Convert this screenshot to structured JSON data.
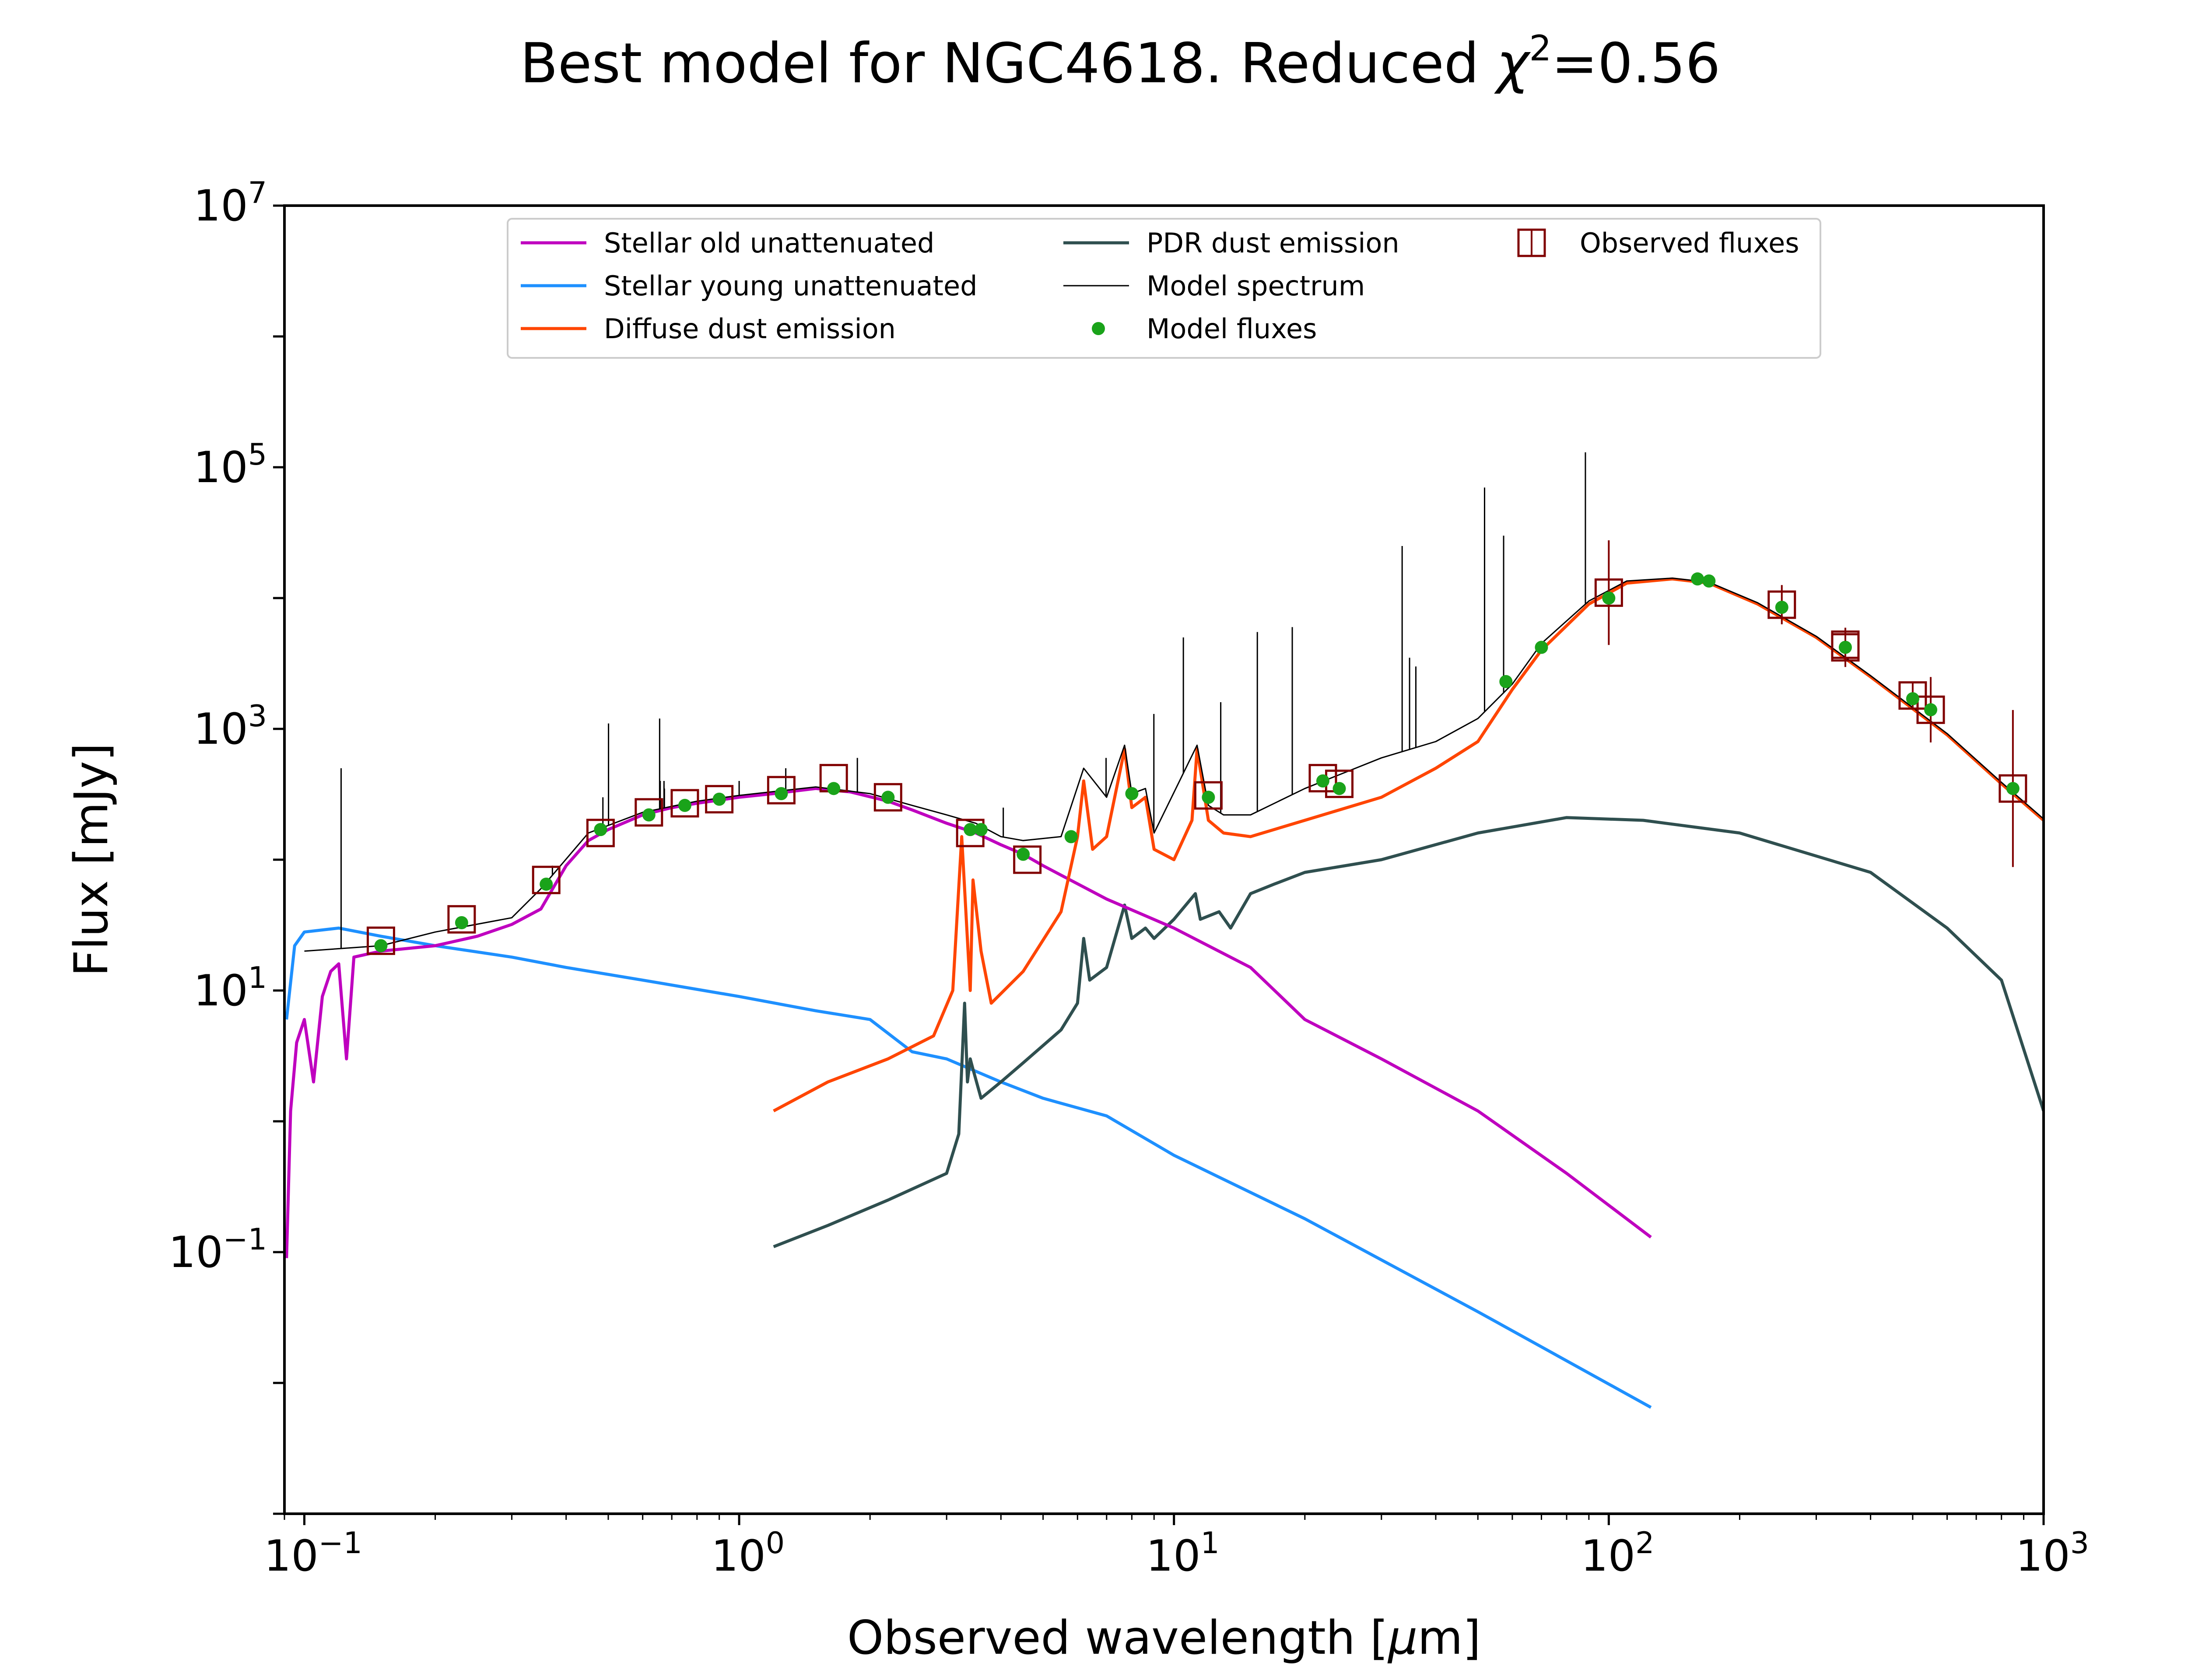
{
  "chart_data": {
    "type": "line",
    "title": "Best model for NGC4618. Reduced χ²=0.56",
    "title_parts": {
      "main": "Best model for NGC4618. Reduced ",
      "chi": "χ",
      "sup": "2",
      "eq": "=0.56"
    },
    "xlabel": "Observed wavelength [μm]",
    "xlabel_parts": {
      "pre": "Observed wavelength [",
      "mu": "μ",
      "post": "m]"
    },
    "ylabel": "Flux [mJy]",
    "xscale": "log",
    "yscale": "log",
    "xlim": [
      0.09,
      1000
    ],
    "ylim": [
      0.001,
      10000000
    ],
    "x_ticks": [
      {
        "value": 0.1,
        "base": "10",
        "exp": "−1"
      },
      {
        "value": 1,
        "base": "10",
        "exp": "0"
      },
      {
        "value": 10,
        "base": "10",
        "exp": "1"
      },
      {
        "value": 100,
        "base": "10",
        "exp": "2"
      },
      {
        "value": 1000,
        "base": "10",
        "exp": "3"
      }
    ],
    "y_ticks": [
      {
        "value": 0.1,
        "base": "10",
        "exp": "−1"
      },
      {
        "value": 10,
        "base": "10",
        "exp": "1"
      },
      {
        "value": 1000,
        "base": "10",
        "exp": "3"
      },
      {
        "value": 100000,
        "base": "10",
        "exp": "5"
      },
      {
        "value": 10000000,
        "base": "10",
        "exp": "7"
      }
    ],
    "legend_position": "upper center",
    "grid": false,
    "series": [
      {
        "name": "Stellar old unattenuated",
        "color": "#BF00BF",
        "width": 7,
        "points": [
          [
            0.091,
            0.09
          ],
          [
            0.093,
            1.2
          ],
          [
            0.096,
            4
          ],
          [
            0.1,
            6
          ],
          [
            0.105,
            2
          ],
          [
            0.11,
            9
          ],
          [
            0.115,
            14
          ],
          [
            0.12,
            16
          ],
          [
            0.125,
            3
          ],
          [
            0.13,
            18
          ],
          [
            0.15,
            20
          ],
          [
            0.2,
            22
          ],
          [
            0.25,
            26
          ],
          [
            0.3,
            32
          ],
          [
            0.35,
            42
          ],
          [
            0.4,
            90
          ],
          [
            0.45,
            140
          ],
          [
            0.5,
            170
          ],
          [
            0.6,
            220
          ],
          [
            0.7,
            250
          ],
          [
            0.8,
            270
          ],
          [
            1.0,
            300
          ],
          [
            1.2,
            320
          ],
          [
            1.5,
            350
          ],
          [
            1.8,
            330
          ],
          [
            2.2,
            280
          ],
          [
            2.5,
            240
          ],
          [
            3.0,
            190
          ],
          [
            3.5,
            160
          ],
          [
            4.0,
            130
          ],
          [
            4.5,
            110
          ],
          [
            5.0,
            90
          ],
          [
            7.0,
            50
          ],
          [
            10,
            30
          ],
          [
            15,
            15
          ],
          [
            20,
            6
          ],
          [
            30,
            3
          ],
          [
            50,
            1.2
          ],
          [
            80,
            0.4
          ],
          [
            125,
            0.13
          ]
        ]
      },
      {
        "name": "Stellar young unattenuated",
        "color": "#1E90FF",
        "width": 7,
        "points": [
          [
            0.091,
            6
          ],
          [
            0.095,
            22
          ],
          [
            0.1,
            28
          ],
          [
            0.12,
            30
          ],
          [
            0.15,
            26
          ],
          [
            0.2,
            22
          ],
          [
            0.3,
            18
          ],
          [
            0.4,
            15
          ],
          [
            0.6,
            12
          ],
          [
            1.0,
            9
          ],
          [
            1.5,
            7
          ],
          [
            2.0,
            6
          ],
          [
            2.3,
            4.2
          ],
          [
            2.5,
            3.4
          ],
          [
            3.0,
            3.0
          ],
          [
            4.0,
            2.0
          ],
          [
            5.0,
            1.5
          ],
          [
            7.0,
            1.1
          ],
          [
            10,
            0.55
          ],
          [
            20,
            0.18
          ],
          [
            50,
            0.035
          ],
          [
            125,
            0.0065
          ]
        ]
      },
      {
        "name": "Diffuse dust emission",
        "color": "#FF4500",
        "width": 7,
        "points": [
          [
            1.2,
            1.2
          ],
          [
            1.6,
            2.0
          ],
          [
            2.2,
            3.0
          ],
          [
            2.8,
            4.5
          ],
          [
            3.1,
            10
          ],
          [
            3.25,
            150
          ],
          [
            3.4,
            10
          ],
          [
            3.45,
            70
          ],
          [
            3.6,
            20
          ],
          [
            3.8,
            8
          ],
          [
            4.5,
            14
          ],
          [
            5.5,
            40
          ],
          [
            6.0,
            150
          ],
          [
            6.2,
            400
          ],
          [
            6.5,
            120
          ],
          [
            7.0,
            150
          ],
          [
            7.7,
            700
          ],
          [
            8.0,
            250
          ],
          [
            8.6,
            300
          ],
          [
            9.0,
            120
          ],
          [
            10,
            100
          ],
          [
            11.0,
            200
          ],
          [
            11.3,
            700
          ],
          [
            12,
            200
          ],
          [
            13,
            160
          ],
          [
            15,
            150
          ],
          [
            20,
            200
          ],
          [
            30,
            300
          ],
          [
            40,
            500
          ],
          [
            50,
            800
          ],
          [
            60,
            2000
          ],
          [
            70,
            4000
          ],
          [
            90,
            9000
          ],
          [
            110,
            13000
          ],
          [
            140,
            14000
          ],
          [
            170,
            13000
          ],
          [
            220,
            9000
          ],
          [
            300,
            5000
          ],
          [
            400,
            2500
          ],
          [
            600,
            900
          ],
          [
            800,
            380
          ],
          [
            1000,
            200
          ]
        ]
      },
      {
        "name": "PDR dust emission",
        "color": "#2F4F4F",
        "width": 7,
        "points": [
          [
            1.2,
            0.11
          ],
          [
            1.6,
            0.16
          ],
          [
            2.2,
            0.25
          ],
          [
            3.0,
            0.4
          ],
          [
            3.2,
            0.8
          ],
          [
            3.3,
            8
          ],
          [
            3.35,
            2
          ],
          [
            3.4,
            3
          ],
          [
            3.45,
            2.5
          ],
          [
            3.6,
            1.5
          ],
          [
            4.0,
            2.0
          ],
          [
            4.5,
            2.8
          ],
          [
            5.5,
            5
          ],
          [
            6.0,
            8
          ],
          [
            6.2,
            25
          ],
          [
            6.4,
            12
          ],
          [
            7.0,
            15
          ],
          [
            7.7,
            45
          ],
          [
            8.0,
            25
          ],
          [
            8.6,
            30
          ],
          [
            9.0,
            25
          ],
          [
            10,
            35
          ],
          [
            11.2,
            55
          ],
          [
            11.5,
            35
          ],
          [
            12.7,
            40
          ],
          [
            13.5,
            30
          ],
          [
            15,
            55
          ],
          [
            17,
            65
          ],
          [
            20,
            80
          ],
          [
            30,
            100
          ],
          [
            50,
            160
          ],
          [
            80,
            210
          ],
          [
            120,
            200
          ],
          [
            200,
            160
          ],
          [
            400,
            80
          ],
          [
            600,
            30
          ],
          [
            800,
            12
          ],
          [
            1000,
            1.2
          ]
        ]
      },
      {
        "name": "Model spectrum",
        "color": "#000000",
        "width": 3,
        "points": [
          [
            0.1,
            20
          ],
          [
            0.15,
            22
          ],
          [
            0.2,
            28
          ],
          [
            0.3,
            36
          ],
          [
            0.35,
            60
          ],
          [
            0.45,
            160
          ],
          [
            0.6,
            230
          ],
          [
            0.8,
            280
          ],
          [
            1.0,
            310
          ],
          [
            1.5,
            360
          ],
          [
            2.0,
            320
          ],
          [
            2.5,
            260
          ],
          [
            3.0,
            220
          ],
          [
            3.5,
            190
          ],
          [
            4.0,
            150
          ],
          [
            4.5,
            140
          ],
          [
            5.5,
            150
          ],
          [
            6.2,
            500
          ],
          [
            7.0,
            300
          ],
          [
            7.7,
            750
          ],
          [
            8.0,
            320
          ],
          [
            8.6,
            350
          ],
          [
            9.0,
            160
          ],
          [
            11.3,
            750
          ],
          [
            12,
            260
          ],
          [
            13,
            220
          ],
          [
            15,
            220
          ],
          [
            20,
            350
          ],
          [
            30,
            600
          ],
          [
            40,
            800
          ],
          [
            50,
            1200
          ],
          [
            60,
            2200
          ],
          [
            70,
            4500
          ],
          [
            90,
            9500
          ],
          [
            110,
            13500
          ],
          [
            140,
            14200
          ],
          [
            170,
            13200
          ],
          [
            220,
            9200
          ],
          [
            300,
            5100
          ],
          [
            400,
            2550
          ],
          [
            600,
            920
          ],
          [
            800,
            390
          ],
          [
            1000,
            205
          ]
        ]
      },
      {
        "name": "Model fluxes",
        "color": "#1AA31A",
        "marker": "circle",
        "points": [
          [
            0.15,
            22
          ],
          [
            0.23,
            33
          ],
          [
            0.36,
            65
          ],
          [
            0.48,
            170
          ],
          [
            0.62,
            220
          ],
          [
            0.75,
            260
          ],
          [
            0.9,
            290
          ],
          [
            1.25,
            320
          ],
          [
            1.65,
            350
          ],
          [
            2.2,
            300
          ],
          [
            3.4,
            170
          ],
          [
            3.6,
            170
          ],
          [
            4.5,
            110
          ],
          [
            5.8,
            150
          ],
          [
            8.0,
            320
          ],
          [
            12,
            300
          ],
          [
            22,
            400
          ],
          [
            24,
            350
          ],
          [
            58,
            2300
          ],
          [
            70,
            4200
          ],
          [
            100,
            10000
          ],
          [
            160,
            14000
          ],
          [
            170,
            13500
          ],
          [
            250,
            8500
          ],
          [
            350,
            4200
          ],
          [
            500,
            1700
          ],
          [
            550,
            1400
          ],
          [
            850,
            350
          ]
        ]
      },
      {
        "name": "Observed fluxes",
        "color": "#800000",
        "marker": "open-square",
        "points": [
          [
            0.15,
            24,
            0
          ],
          [
            0.23,
            35,
            0
          ],
          [
            0.36,
            70,
            0
          ],
          [
            0.48,
            160,
            0
          ],
          [
            0.62,
            230,
            0
          ],
          [
            0.75,
            270,
            0
          ],
          [
            0.9,
            290,
            0
          ],
          [
            1.25,
            340,
            0
          ],
          [
            1.65,
            420,
            0
          ],
          [
            2.2,
            300,
            0
          ],
          [
            3.4,
            160,
            0
          ],
          [
            4.6,
            100,
            0
          ],
          [
            12,
            310,
            0
          ],
          [
            22,
            420,
            0
          ],
          [
            24,
            380,
            0
          ],
          [
            100,
            11000,
            0.4
          ],
          [
            250,
            8900,
            0.15
          ],
          [
            350,
            4200,
            0.15
          ],
          [
            350,
            4400,
            0
          ],
          [
            500,
            1800,
            0.1
          ],
          [
            550,
            1400,
            0.25
          ],
          [
            850,
            350,
            0.6
          ]
        ]
      }
    ],
    "emission_lines": [
      [
        0.1215,
        500
      ],
      [
        0.372,
        90
      ],
      [
        0.486,
        300
      ],
      [
        0.5007,
        1100
      ],
      [
        0.6563,
        1200
      ],
      [
        0.6584,
        400
      ],
      [
        0.6717,
        400
      ],
      [
        0.6731,
        350
      ],
      [
        1.0,
        400
      ],
      [
        1.28,
        500
      ],
      [
        1.87,
        600
      ],
      [
        2.12,
        300
      ],
      [
        4.05,
        250
      ],
      [
        6.98,
        600
      ],
      [
        8.99,
        1300
      ],
      [
        10.51,
        5000
      ],
      [
        12.81,
        1600
      ],
      [
        15.55,
        5500
      ],
      [
        18.71,
        6000
      ],
      [
        33.48,
        25000
      ],
      [
        34.82,
        3500
      ],
      [
        36.0,
        3000
      ],
      [
        51.8,
        70000
      ],
      [
        57.3,
        30000
      ],
      [
        88.36,
        130000
      ],
      [
        157.7,
        14000
      ]
    ]
  }
}
